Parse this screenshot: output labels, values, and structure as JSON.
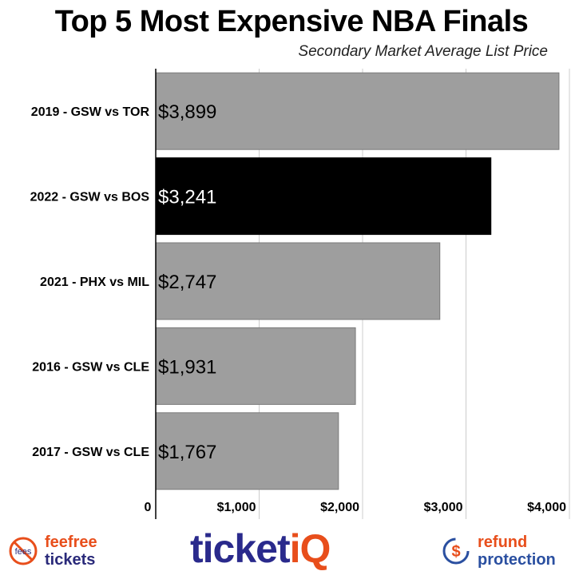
{
  "chart_data": {
    "type": "bar",
    "orientation": "horizontal",
    "title": "Top 5 Most Expensive NBA Finals",
    "subtitle": "Secondary Market Average List Price",
    "categories": [
      "2019 - GSW vs TOR",
      "2022 - GSW vs BOS",
      "2021 - PHX vs MIL",
      "2016 - GSW vs CLE",
      "2017 - GSW vs CLE"
    ],
    "values": [
      3899,
      3241,
      2747,
      1931,
      1767
    ],
    "value_labels": [
      "$3,899",
      "$3,241",
      "$2,747",
      "$1,931",
      "$1,767"
    ],
    "highlight_index": 1,
    "xlim": [
      0,
      4000
    ],
    "xticks": [
      0,
      1000,
      2000,
      3000,
      4000
    ],
    "xtick_labels": [
      "0",
      "$1,000",
      "$2,000",
      "$3,000",
      "$4,000"
    ],
    "grid": true,
    "colors": {
      "bar": "#9e9e9e",
      "highlight": "#000000"
    }
  },
  "footer": {
    "left": {
      "line1": "feefree",
      "line2": "tickets",
      "icon_text": "fees"
    },
    "center": {
      "main": "ticket",
      "accent": "iQ"
    },
    "right": {
      "line1": "refund",
      "line2": "protection",
      "icon_text": "$"
    }
  }
}
